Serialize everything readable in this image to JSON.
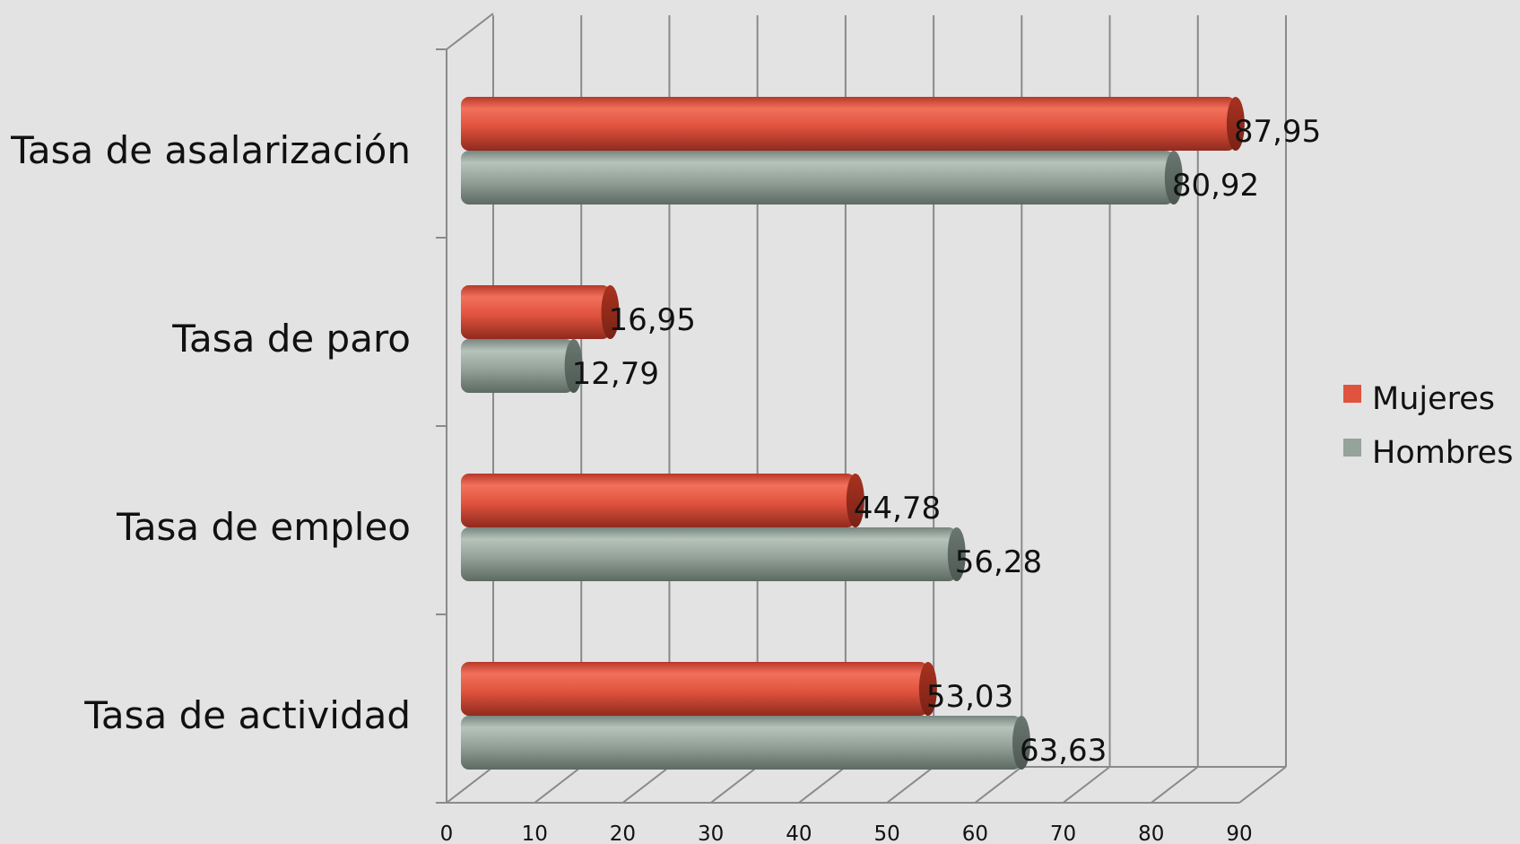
{
  "chart_data": {
    "type": "bar",
    "orientation": "horizontal",
    "style": "3d-cylinder",
    "title": "",
    "xlabel": "",
    "ylabel": "",
    "categories": [
      "Tasa de asalarización",
      "Tasa de paro",
      "Tasa de empleo",
      "Tasa de actividad"
    ],
    "series": [
      {
        "name": "Mujeres",
        "color": "#e0533e",
        "values": [
          87.95,
          16.95,
          44.78,
          53.03
        ],
        "labels": [
          "87,95",
          "16,95",
          "44,78",
          "53,03"
        ]
      },
      {
        "name": "Hombres",
        "color": "#95a39b",
        "values": [
          80.92,
          12.79,
          56.28,
          63.63
        ],
        "labels": [
          "80,92",
          "12,79",
          "56,28",
          "63,63"
        ]
      }
    ],
    "xlim": [
      0,
      90
    ],
    "xticks": [
      "0",
      "10",
      "20",
      "30",
      "40",
      "50",
      "60",
      "70",
      "80",
      "90"
    ],
    "grid": true,
    "legend": "right"
  }
}
